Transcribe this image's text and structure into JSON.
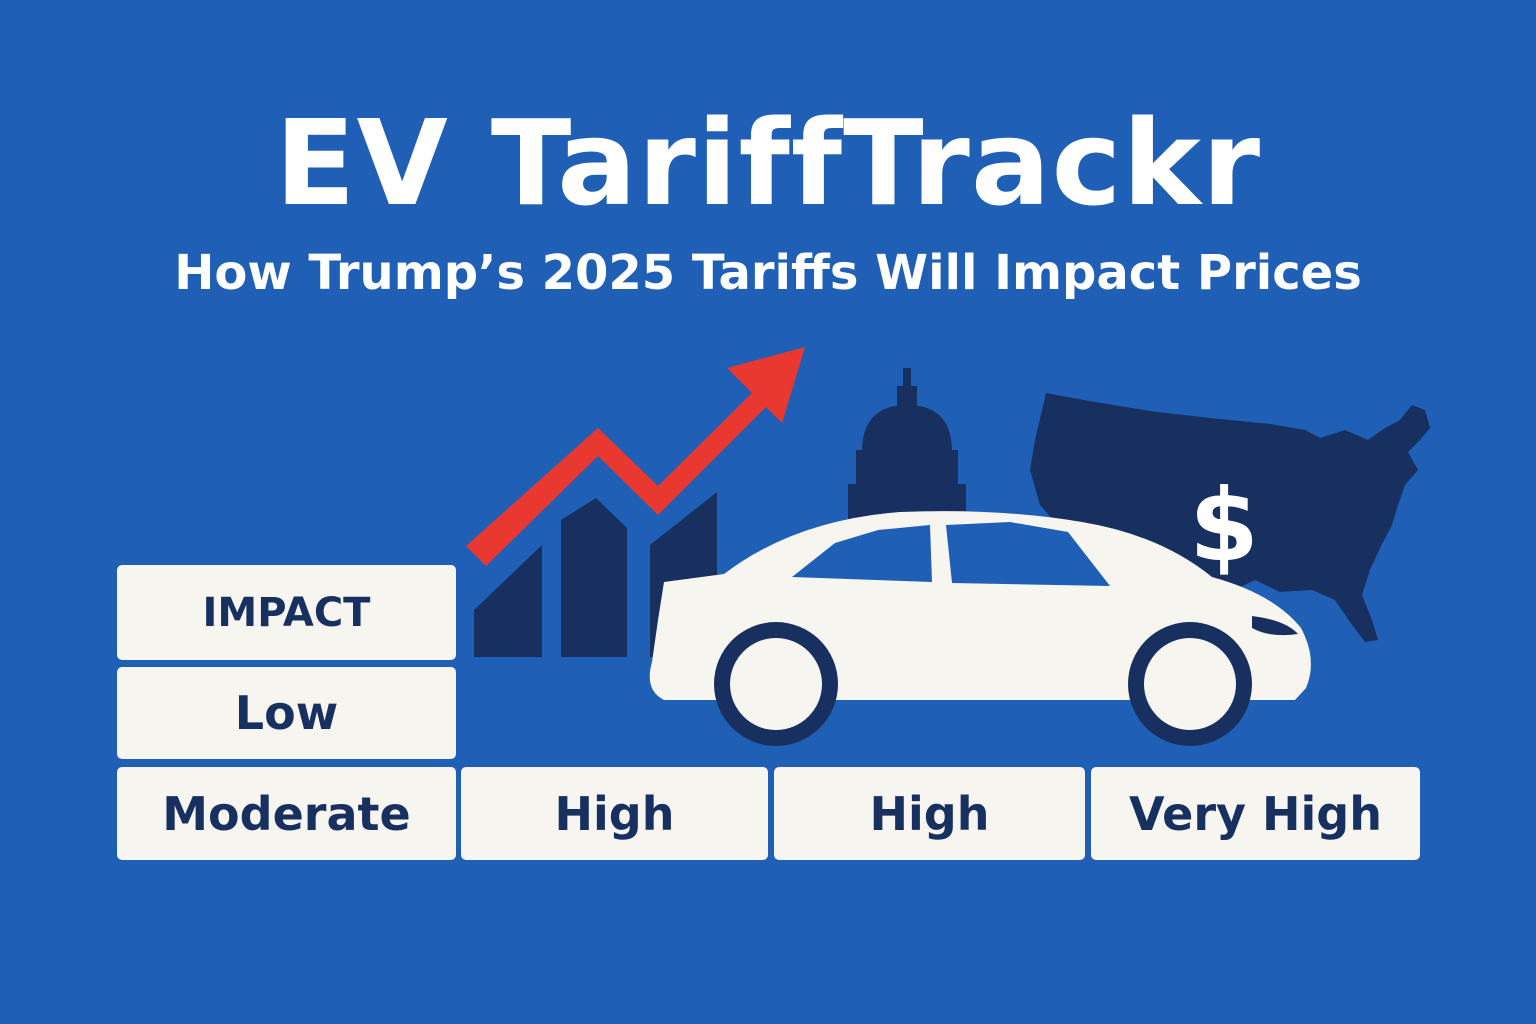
{
  "header": {
    "title": "EV TariffTrackr",
    "subtitle": "How Trump’s 2025 Tariffs Will Impact Prices"
  },
  "illustration": {
    "icons": [
      "trend-arrow-icon",
      "bar-chart-icon",
      "capitol-dome-icon",
      "us-map-icon",
      "dollar-sign-icon",
      "car-icon"
    ],
    "dollar_symbol": "$"
  },
  "impact_table": {
    "header": "IMPACT",
    "levels": [
      "Low",
      "Moderate",
      "High",
      "High",
      "Very High"
    ]
  },
  "colors": {
    "background": "#1f5fb6",
    "navy": "#17305f",
    "arrow_red": "#e8382f",
    "card": "#f7f5ef"
  }
}
